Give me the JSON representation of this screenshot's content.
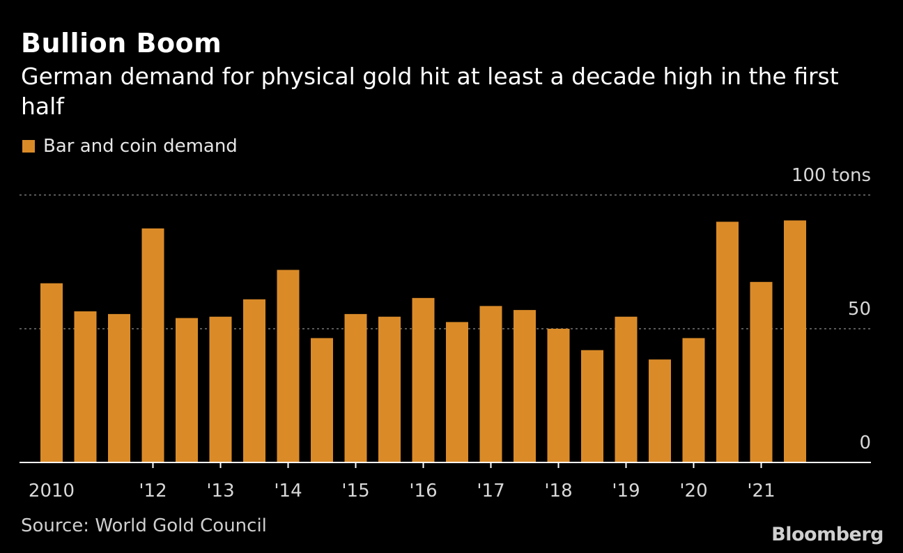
{
  "title": "Bullion Boom",
  "subtitle": "German demand for physical gold hit at least a decade high in the first half",
  "source": "Source: World Gold Council",
  "brand": "Bloomberg",
  "colors": {
    "bar": "#DA8B28",
    "background": "#000000",
    "grid": "#777777",
    "baseline": "#FFFFFF"
  },
  "chart_data": {
    "type": "bar",
    "title": "Bullion Boom",
    "subtitle": "German demand for physical gold hit at least a decade high in the first half",
    "ylim": [
      0,
      100
    ],
    "yticks": [
      {
        "value": 0,
        "label": "0"
      },
      {
        "value": 50,
        "label": "50"
      },
      {
        "value": 100,
        "label": "100 tons"
      }
    ],
    "grid": true,
    "legend": "top-left",
    "series": [
      {
        "name": "Bar and coin demand",
        "values": [
          67,
          56.5,
          55.5,
          87.5,
          54,
          54.5,
          61,
          72,
          46.5,
          55.5,
          54.5,
          61.5,
          52.5,
          58.5,
          57,
          50,
          42,
          54.5,
          38.5,
          46.5,
          90,
          67.5,
          90.5
        ]
      }
    ],
    "xtick_labels": [
      {
        "index": 0,
        "label": "2010"
      },
      {
        "index": 3,
        "label": "'12"
      },
      {
        "index": 5,
        "label": "'13"
      },
      {
        "index": 7,
        "label": "'14"
      },
      {
        "index": 9,
        "label": "'15"
      },
      {
        "index": 11,
        "label": "'16"
      },
      {
        "index": 13,
        "label": "'17"
      },
      {
        "index": 15,
        "label": "'18"
      },
      {
        "index": 17,
        "label": "'19"
      },
      {
        "index": 19,
        "label": "'20"
      },
      {
        "index": 21,
        "label": "'21"
      }
    ]
  }
}
